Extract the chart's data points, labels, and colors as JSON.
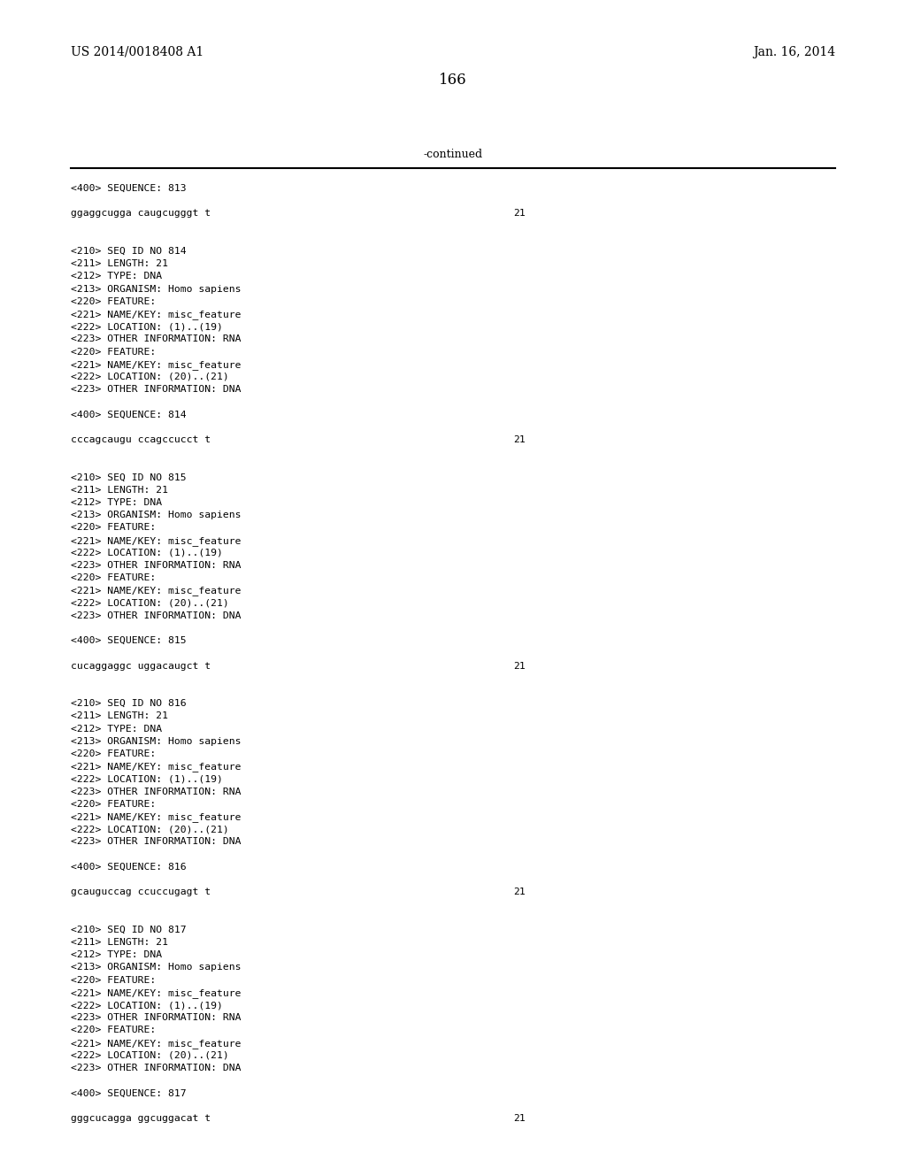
{
  "header_left": "US 2014/0018408 A1",
  "header_right": "Jan. 16, 2014",
  "page_number": "166",
  "continued_text": "-continued",
  "background_color": "#ffffff",
  "text_color": "#000000",
  "content": [
    {
      "type": "seq_header",
      "text": "<400> SEQUENCE: 813"
    },
    {
      "type": "blank"
    },
    {
      "type": "seq_line",
      "text": "ggaggcugga caugcugggt t",
      "num": "21"
    },
    {
      "type": "blank"
    },
    {
      "type": "blank"
    },
    {
      "type": "info",
      "text": "<210> SEQ ID NO 814"
    },
    {
      "type": "info",
      "text": "<211> LENGTH: 21"
    },
    {
      "type": "info",
      "text": "<212> TYPE: DNA"
    },
    {
      "type": "info",
      "text": "<213> ORGANISM: Homo sapiens"
    },
    {
      "type": "info",
      "text": "<220> FEATURE:"
    },
    {
      "type": "info",
      "text": "<221> NAME/KEY: misc_feature"
    },
    {
      "type": "info",
      "text": "<222> LOCATION: (1)..(19)"
    },
    {
      "type": "info",
      "text": "<223> OTHER INFORMATION: RNA"
    },
    {
      "type": "info",
      "text": "<220> FEATURE:"
    },
    {
      "type": "info",
      "text": "<221> NAME/KEY: misc_feature"
    },
    {
      "type": "info",
      "text": "<222> LOCATION: (20)..(21)"
    },
    {
      "type": "info",
      "text": "<223> OTHER INFORMATION: DNA"
    },
    {
      "type": "blank"
    },
    {
      "type": "seq_header",
      "text": "<400> SEQUENCE: 814"
    },
    {
      "type": "blank"
    },
    {
      "type": "seq_line",
      "text": "cccagcaugu ccagccucct t",
      "num": "21"
    },
    {
      "type": "blank"
    },
    {
      "type": "blank"
    },
    {
      "type": "info",
      "text": "<210> SEQ ID NO 815"
    },
    {
      "type": "info",
      "text": "<211> LENGTH: 21"
    },
    {
      "type": "info",
      "text": "<212> TYPE: DNA"
    },
    {
      "type": "info",
      "text": "<213> ORGANISM: Homo sapiens"
    },
    {
      "type": "info",
      "text": "<220> FEATURE:"
    },
    {
      "type": "info",
      "text": "<221> NAME/KEY: misc_feature"
    },
    {
      "type": "info",
      "text": "<222> LOCATION: (1)..(19)"
    },
    {
      "type": "info",
      "text": "<223> OTHER INFORMATION: RNA"
    },
    {
      "type": "info",
      "text": "<220> FEATURE:"
    },
    {
      "type": "info",
      "text": "<221> NAME/KEY: misc_feature"
    },
    {
      "type": "info",
      "text": "<222> LOCATION: (20)..(21)"
    },
    {
      "type": "info",
      "text": "<223> OTHER INFORMATION: DNA"
    },
    {
      "type": "blank"
    },
    {
      "type": "seq_header",
      "text": "<400> SEQUENCE: 815"
    },
    {
      "type": "blank"
    },
    {
      "type": "seq_line",
      "text": "cucaggaggc uggacaugct t",
      "num": "21"
    },
    {
      "type": "blank"
    },
    {
      "type": "blank"
    },
    {
      "type": "info",
      "text": "<210> SEQ ID NO 816"
    },
    {
      "type": "info",
      "text": "<211> LENGTH: 21"
    },
    {
      "type": "info",
      "text": "<212> TYPE: DNA"
    },
    {
      "type": "info",
      "text": "<213> ORGANISM: Homo sapiens"
    },
    {
      "type": "info",
      "text": "<220> FEATURE:"
    },
    {
      "type": "info",
      "text": "<221> NAME/KEY: misc_feature"
    },
    {
      "type": "info",
      "text": "<222> LOCATION: (1)..(19)"
    },
    {
      "type": "info",
      "text": "<223> OTHER INFORMATION: RNA"
    },
    {
      "type": "info",
      "text": "<220> FEATURE:"
    },
    {
      "type": "info",
      "text": "<221> NAME/KEY: misc_feature"
    },
    {
      "type": "info",
      "text": "<222> LOCATION: (20)..(21)"
    },
    {
      "type": "info",
      "text": "<223> OTHER INFORMATION: DNA"
    },
    {
      "type": "blank"
    },
    {
      "type": "seq_header",
      "text": "<400> SEQUENCE: 816"
    },
    {
      "type": "blank"
    },
    {
      "type": "seq_line",
      "text": "gcauguccag ccuccugagt t",
      "num": "21"
    },
    {
      "type": "blank"
    },
    {
      "type": "blank"
    },
    {
      "type": "info",
      "text": "<210> SEQ ID NO 817"
    },
    {
      "type": "info",
      "text": "<211> LENGTH: 21"
    },
    {
      "type": "info",
      "text": "<212> TYPE: DNA"
    },
    {
      "type": "info",
      "text": "<213> ORGANISM: Homo sapiens"
    },
    {
      "type": "info",
      "text": "<220> FEATURE:"
    },
    {
      "type": "info",
      "text": "<221> NAME/KEY: misc_feature"
    },
    {
      "type": "info",
      "text": "<222> LOCATION: (1)..(19)"
    },
    {
      "type": "info",
      "text": "<223> OTHER INFORMATION: RNA"
    },
    {
      "type": "info",
      "text": "<220> FEATURE:"
    },
    {
      "type": "info",
      "text": "<221> NAME/KEY: misc_feature"
    },
    {
      "type": "info",
      "text": "<222> LOCATION: (20)..(21)"
    },
    {
      "type": "info",
      "text": "<223> OTHER INFORMATION: DNA"
    },
    {
      "type": "blank"
    },
    {
      "type": "seq_header",
      "text": "<400> SEQUENCE: 817"
    },
    {
      "type": "blank"
    },
    {
      "type": "seq_line",
      "text": "gggcucagga ggcuggacat t",
      "num": "21"
    }
  ]
}
